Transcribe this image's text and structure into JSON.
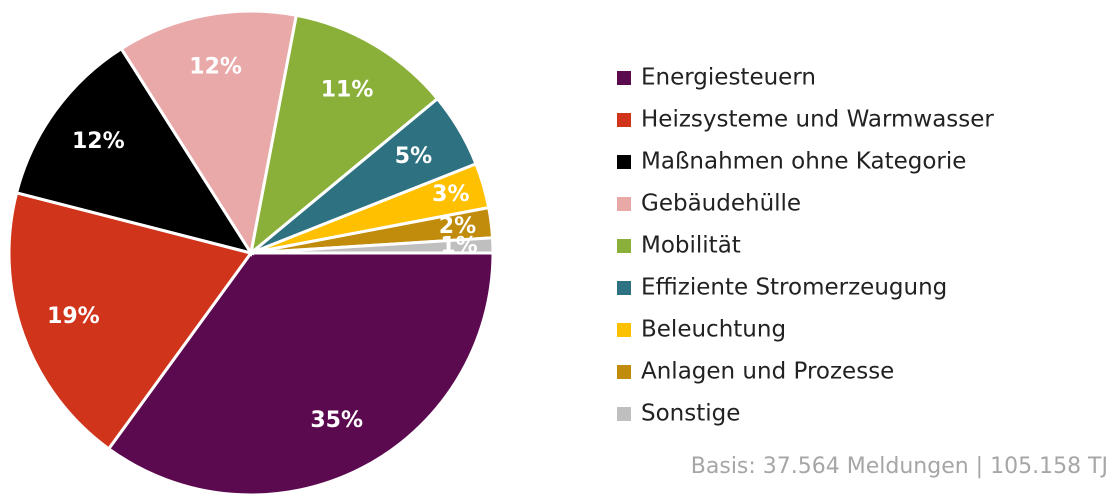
{
  "chart_data": {
    "type": "pie",
    "categories": [
      "Energiesteuern",
      "Heizsysteme und Warmwasser",
      "Maßnahmen ohne Kategorie",
      "Gebäudehülle",
      "Mobilität",
      "Effiziente Stromerzeugung",
      "Beleuchtung",
      "Anlagen und Prozesse",
      "Sonstige"
    ],
    "values": [
      35,
      19,
      12,
      12,
      11,
      5,
      3,
      2,
      1
    ],
    "value_labels": [
      "35%",
      "19%",
      "12%",
      "12%",
      "11%",
      "5%",
      "3%",
      "2%",
      "1%"
    ],
    "colors": [
      "#5c0a50",
      "#d0351c",
      "#000000",
      "#eaa9a9",
      "#8bb03a",
      "#2e7282",
      "#ffc000",
      "#c18b0b",
      "#bfbfbf"
    ],
    "annotation": "Basis: 37.564 Meldungen | 105.158 TJ",
    "legend": "right"
  }
}
